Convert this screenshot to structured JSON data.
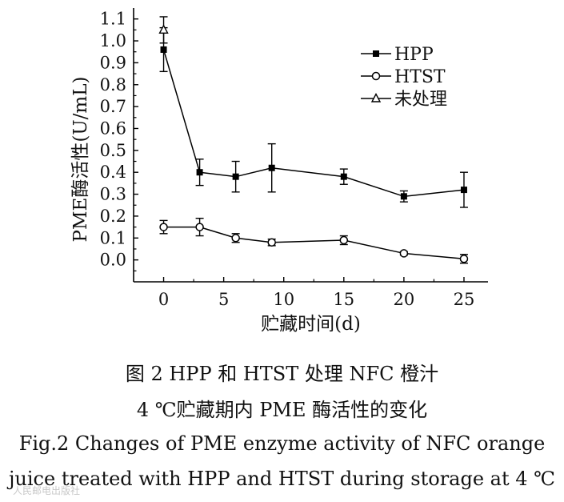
{
  "chart_data": {
    "type": "line",
    "title": "",
    "xlabel": "贮藏时间(d)",
    "ylabel": "PME酶活性(U/mL)",
    "xlim": [
      -2.5,
      27
    ],
    "ylim": [
      -0.1,
      1.15
    ],
    "x_ticks": [
      0,
      5,
      10,
      15,
      20,
      25
    ],
    "y_ticks": [
      0.0,
      0.1,
      0.2,
      0.3,
      0.4,
      0.5,
      0.6,
      0.7,
      0.8,
      0.9,
      1.0,
      1.1
    ],
    "x_tick_labels": [
      "0",
      "5",
      "10",
      "15",
      "20",
      "25"
    ],
    "y_tick_labels": [
      "0.0",
      "0.1",
      "0.2",
      "0.3",
      "0.4",
      "0.5",
      "0.6",
      "0.7",
      "0.8",
      "0.9",
      "1.0",
      "1.1"
    ],
    "grid": false,
    "legend_position": "top-right",
    "series": [
      {
        "name": "HPP",
        "marker": "filled-square",
        "connected": true,
        "x": [
          0,
          3,
          6,
          9,
          15,
          20,
          25
        ],
        "y": [
          0.96,
          0.4,
          0.38,
          0.42,
          0.38,
          0.29,
          0.32
        ],
        "error": [
          0.1,
          0.06,
          0.07,
          0.11,
          0.035,
          0.025,
          0.08
        ]
      },
      {
        "name": "HTST",
        "marker": "open-circle",
        "connected": true,
        "x": [
          0,
          3,
          6,
          9,
          15,
          20,
          25
        ],
        "y": [
          0.15,
          0.15,
          0.1,
          0.08,
          0.09,
          0.03,
          0.005
        ],
        "error": [
          0.03,
          0.04,
          0.02,
          0.015,
          0.02,
          0.008,
          0.02
        ]
      },
      {
        "name": "未处理",
        "marker": "open-triangle",
        "connected": false,
        "x": [
          0
        ],
        "y": [
          1.05
        ],
        "error": [
          0.06
        ]
      }
    ]
  },
  "caption": {
    "cn_line1": "图 2   HPP 和 HTST 处理 NFC 橙汁",
    "cn_line2": "4 ℃贮藏期内 PME 酶活性的变化",
    "en_line1": "Fig.2   Changes of PME enzyme activity of NFC orange",
    "en_line2": "juice treated with HPP and HTST during storage at 4 ℃"
  },
  "watermark": "人民邮电出版社"
}
